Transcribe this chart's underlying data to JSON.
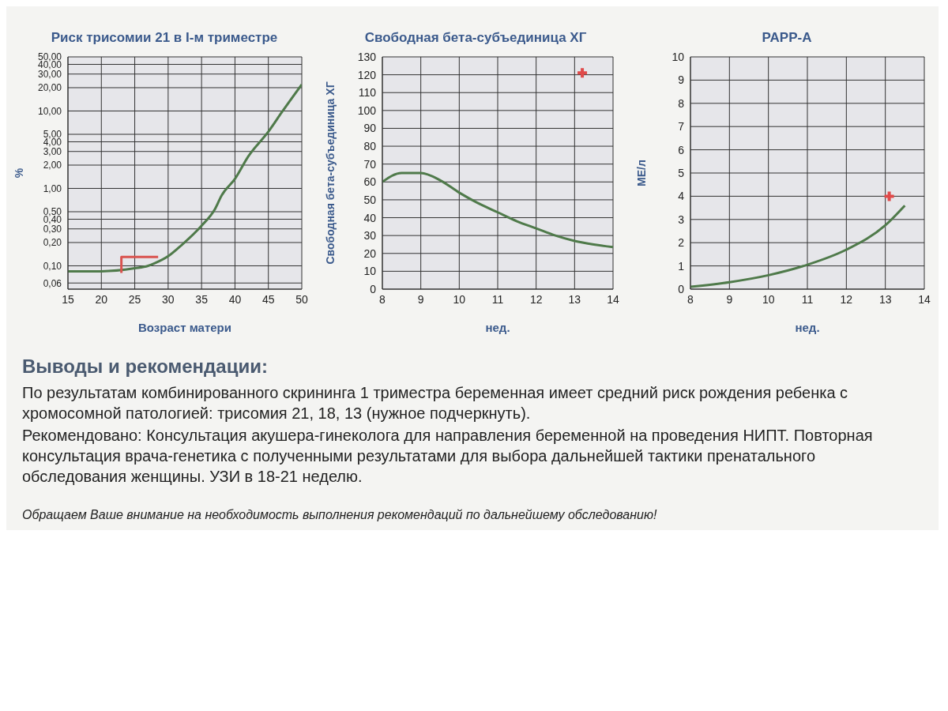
{
  "chart_data": [
    {
      "type": "line",
      "title": "Риск трисомии 21 в I-м триместре",
      "xlabel": "Возраст матери",
      "ylabel": "%",
      "log": "y",
      "grid": true,
      "xlim": [
        15,
        50
      ],
      "xticks": [
        15,
        20,
        25,
        30,
        35,
        40,
        45,
        50
      ],
      "ylim": [
        0.05,
        50
      ],
      "yticks": [
        {
          "value": 0.06,
          "label": "0,06"
        },
        {
          "value": 0.1,
          "label": "0,10"
        },
        {
          "value": 0.2,
          "label": "0,20"
        },
        {
          "value": 0.3,
          "label": "0,30"
        },
        {
          "value": 0.4,
          "label": "0,40"
        },
        {
          "value": 0.5,
          "label": "0,50"
        },
        {
          "value": 1,
          "label": "1,00"
        },
        {
          "value": 2,
          "label": "2,00"
        },
        {
          "value": 3,
          "label": "3,00"
        },
        {
          "value": 4,
          "label": "4,00"
        },
        {
          "value": 5,
          "label": "5,00"
        },
        {
          "value": 10,
          "label": "10,00"
        },
        {
          "value": 20,
          "label": "20,00"
        },
        {
          "value": 30,
          "label": "30,00"
        },
        {
          "value": 40,
          "label": "40,00"
        },
        {
          "value": 50,
          "label": "50,00"
        }
      ],
      "series": [
        {
          "type": "line",
          "color": "#4f7a4a",
          "x": [
            15,
            20,
            25,
            27,
            28,
            30,
            32,
            35,
            37,
            38,
            40,
            42,
            45,
            47,
            50
          ],
          "values": [
            0.085,
            0.085,
            0.093,
            0.1,
            0.108,
            0.133,
            0.185,
            0.33,
            0.54,
            0.81,
            1.33,
            2.6,
            5.4,
            9.6,
            22
          ]
        },
        {
          "type": "line",
          "color": "#d9534f",
          "x": [
            23,
            23,
            28.5
          ],
          "values": [
            0.081,
            0.13,
            0.13
          ]
        }
      ]
    },
    {
      "type": "line",
      "title": "Свободная бета-субъединица ХГ",
      "xlabel": "нед.",
      "ylabel": "Свободная бета-субъединица ХГ",
      "grid": true,
      "xlim": [
        8,
        14
      ],
      "xticks": [
        8,
        9,
        10,
        11,
        12,
        13,
        14
      ],
      "ylim": [
        0,
        130
      ],
      "yticks": [
        0,
        10,
        20,
        30,
        40,
        50,
        60,
        70,
        80,
        90,
        100,
        110,
        120,
        130
      ],
      "series": [
        {
          "type": "line",
          "color": "#4f7a4a",
          "x": [
            8,
            8.5,
            9,
            9.5,
            10,
            10.5,
            11,
            11.5,
            12,
            12.5,
            13,
            13.5,
            14
          ],
          "values": [
            60,
            65,
            65,
            61,
            54,
            48,
            43,
            38,
            34,
            30,
            27,
            25,
            23.5
          ]
        },
        {
          "type": "scatter",
          "marker": "cross",
          "color": "#e04a4a",
          "x": [
            13.2
          ],
          "values": [
            121
          ]
        }
      ]
    },
    {
      "type": "line",
      "title": "PAPP-A",
      "xlabel": "нед.",
      "ylabel": "МЕ/л",
      "grid": true,
      "xlim": [
        8,
        14
      ],
      "xticks": [
        8,
        9,
        10,
        11,
        12,
        13,
        14
      ],
      "ylim": [
        0,
        10
      ],
      "yticks": [
        0,
        1,
        2,
        3,
        4,
        5,
        6,
        7,
        8,
        9,
        10
      ],
      "series": [
        {
          "type": "line",
          "color": "#4f7a4a",
          "x": [
            8,
            9,
            10,
            11,
            12,
            13,
            13.5
          ],
          "values": [
            0.1,
            0.3,
            0.6,
            1.05,
            1.7,
            2.75,
            3.6
          ]
        },
        {
          "type": "scatter",
          "marker": "cross",
          "color": "#e04a4a",
          "x": [
            13.1
          ],
          "values": [
            4.0
          ]
        }
      ]
    },
    {
      "type": "other",
      "title": "Выводы и рекомендации:",
      "annotations": [
        "По результатам комбинированного скрининга 1 триместра беременная имеет средний риск рождения ребенка с хромосомной патологией: трисомия 21, 18, 13 (нужное подчеркнуть).",
        "Рекомендовано: Консультация акушера-гинеколога для направления беременной на проведения НИПТ. Повторная консультация врача-генетика с полученными результатами для выбора дальнейшей тактики пренатального обследования женщины. УЗИ в 18-21 неделю.",
        "Обращаем Ваше внимание на необходимость выполнения рекомендаций по дальнейшему обследованию!"
      ]
    }
  ]
}
